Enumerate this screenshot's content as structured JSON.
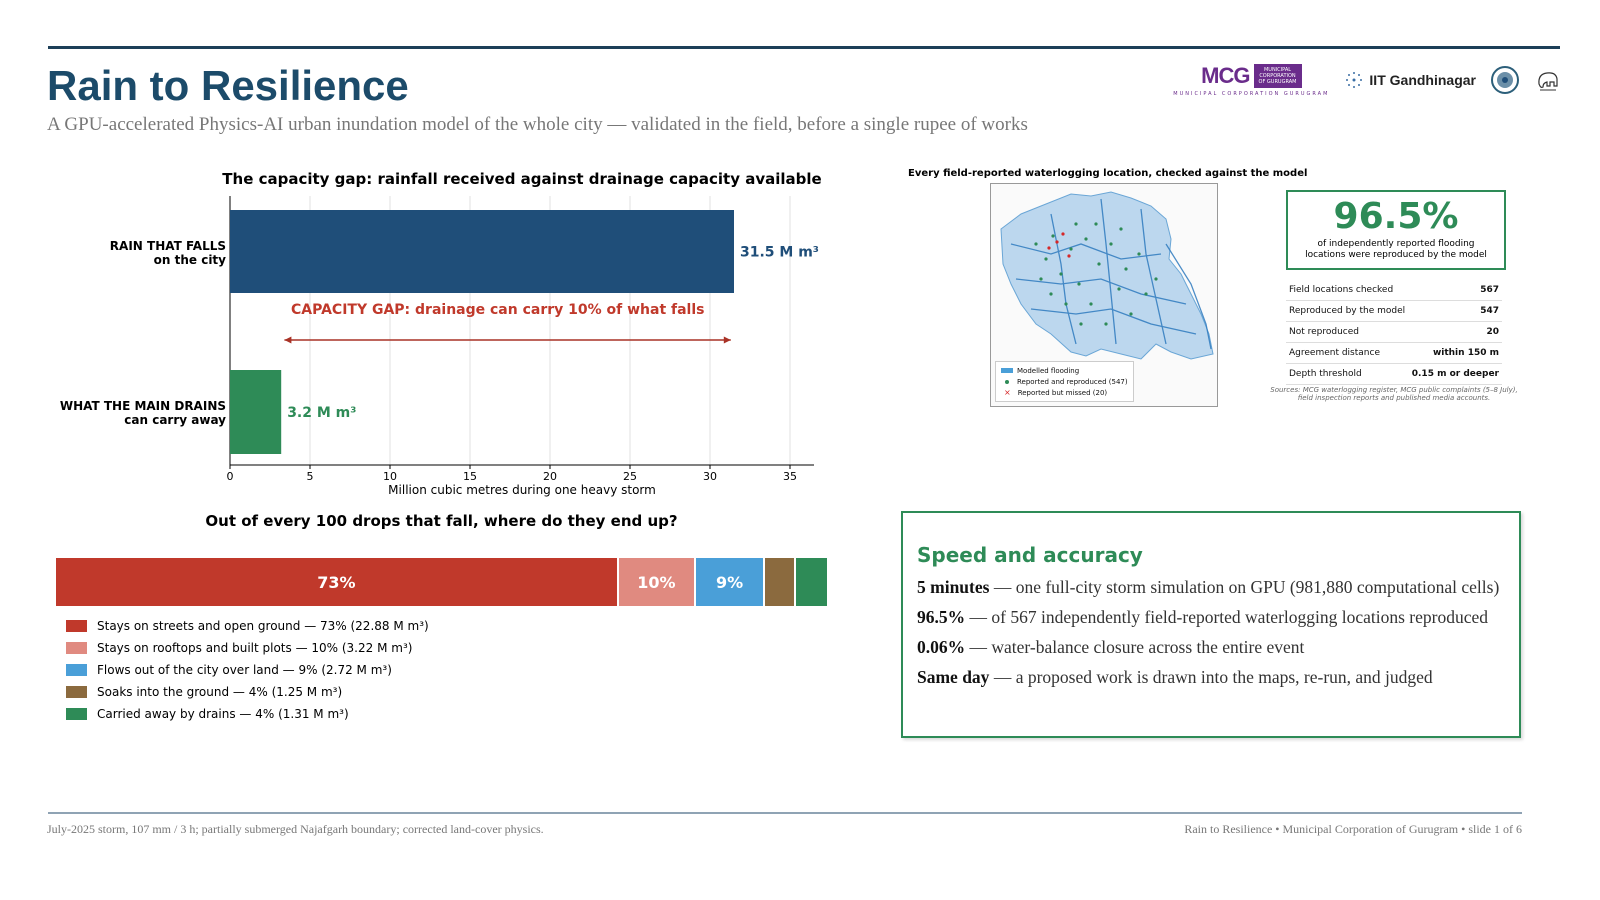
{
  "header": {
    "title": "Rain to Resilience",
    "subtitle": "A GPU-accelerated Physics-AI urban inundation model of the whole city — validated in the field, before a single rupee of works"
  },
  "logos": {
    "mcg_text": "MCG",
    "mcg_box": "MUNICIPAL CORPORATION OF GURUGRAM",
    "mcg_sub": "MUNICIPAL CORPORATION GURUGRAM",
    "iit": "IIT Gandhinagar"
  },
  "chart_data": [
    {
      "type": "bar",
      "orientation": "horizontal",
      "title": "The capacity gap: rainfall received against drainage capacity available",
      "categories": [
        "RAIN THAT FALLS on the city",
        "WHAT THE MAIN DRAINS can carry away"
      ],
      "category_lines": [
        [
          "RAIN THAT FALLS",
          "on the city"
        ],
        [
          "WHAT THE MAIN DRAINS",
          "can carry away"
        ]
      ],
      "values": [
        31.5,
        3.2
      ],
      "value_labels": [
        "31.5 M m³",
        "3.2 M m³"
      ],
      "colors": [
        "#1f4e79",
        "#2e8b57"
      ],
      "xlabel": "Million cubic metres during one heavy storm",
      "xlim": [
        0,
        36.5
      ],
      "xticks": [
        0,
        5,
        10,
        15,
        20,
        25,
        30,
        35
      ],
      "grid": true,
      "annotation": "CAPACITY GAP:  drainage can carry 10% of what falls",
      "annotation_arrow": [
        3.4,
        31.3
      ]
    },
    {
      "type": "bar",
      "orientation": "stacked-horizontal",
      "title": "Out of every 100 drops that fall, where do they end up?",
      "series": [
        {
          "name": "Stays on streets and open ground",
          "value": 73,
          "label": "73%",
          "legend": "Stays on streets and open ground  —  73%  (22.88 M m³)",
          "color": "#c0392b"
        },
        {
          "name": "Stays on rooftops and built plots",
          "value": 10,
          "label": "10%",
          "legend": "Stays on rooftops and built plots  —  10%  (3.22 M m³)",
          "color": "#e08a80"
        },
        {
          "name": "Flows out of the city over land",
          "value": 9,
          "label": "9%",
          "legend": "Flows out of the city over land  —  9%  (2.72 M m³)",
          "color": "#4a9fd8"
        },
        {
          "name": "Soaks into the ground",
          "value": 4,
          "label": "",
          "legend": "Soaks into the ground  —  4%  (1.25 M m³)",
          "color": "#8b6a3e"
        },
        {
          "name": "Carried away by drains",
          "value": 4,
          "label": "",
          "legend": "Carried away by drains  —  4%  (1.31 M m³)",
          "color": "#2e8b57"
        }
      ],
      "legend_position": "bottom-left"
    }
  ],
  "map": {
    "title": "Every field-reported waterlogging location, checked against the model",
    "legend": [
      "Modelled flooding",
      "Reported and reproduced (547)",
      "Reported but missed (20)"
    ]
  },
  "validation": {
    "headline": "96.5%",
    "caption_1": "of independently reported flooding",
    "caption_2": "locations were reproduced by the model",
    "rows": [
      {
        "label": "Field locations checked",
        "value": "567"
      },
      {
        "label": "Reproduced by the model",
        "value": "547"
      },
      {
        "label": "Not reproduced",
        "value": "20"
      },
      {
        "label": "Agreement distance",
        "value": "within 150 m"
      },
      {
        "label": "Depth threshold",
        "value": "0.15 m or deeper"
      }
    ],
    "sources_1": "Sources: MCG waterlogging register, MCG public complaints (5–8 July),",
    "sources_2": "field inspection reports and published media accounts."
  },
  "speed": {
    "title": "Speed and accuracy",
    "lines": [
      {
        "bold": "5 minutes",
        "text": " — one full-city storm simulation on GPU (981,880 computational cells)"
      },
      {
        "bold": "96.5%",
        "text": " — of 567 independently field-reported waterlogging locations reproduced"
      },
      {
        "bold": "0.06%",
        "text": " — water-balance closure across the entire event"
      },
      {
        "bold": "Same day",
        "text": " — a proposed work is drawn into the maps, re-run, and judged"
      }
    ]
  },
  "footer": {
    "left": "July-2025 storm, 107 mm / 3 h; partially submerged Najafgarh boundary; corrected land-cover physics.",
    "right": "Rain to Resilience  •  Municipal Corporation of Gurugram  •  slide 1 of 6"
  }
}
